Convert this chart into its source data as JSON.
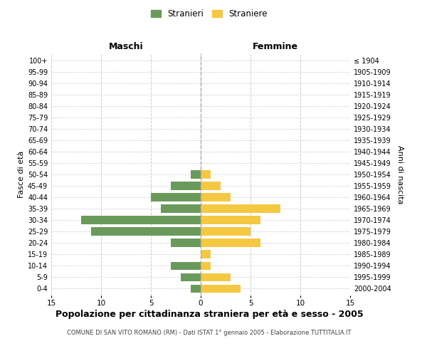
{
  "age_groups_bottom_to_top": [
    "0-4",
    "5-9",
    "10-14",
    "15-19",
    "20-24",
    "25-29",
    "30-34",
    "35-39",
    "40-44",
    "45-49",
    "50-54",
    "55-59",
    "60-64",
    "65-69",
    "70-74",
    "75-79",
    "80-84",
    "85-89",
    "90-94",
    "95-99",
    "100+"
  ],
  "birth_years_bottom_to_top": [
    "2000-2004",
    "1995-1999",
    "1990-1994",
    "1985-1989",
    "1980-1984",
    "1975-1979",
    "1970-1974",
    "1965-1969",
    "1960-1964",
    "1955-1959",
    "1950-1954",
    "1945-1949",
    "1940-1944",
    "1935-1939",
    "1930-1934",
    "1925-1929",
    "1920-1924",
    "1915-1919",
    "1910-1914",
    "1905-1909",
    "≤ 1904"
  ],
  "maschi": [
    1,
    2,
    3,
    0,
    3,
    11,
    12,
    4,
    5,
    3,
    1,
    0,
    0,
    0,
    0,
    0,
    0,
    0,
    0,
    0,
    0
  ],
  "femmine": [
    4,
    3,
    1,
    1,
    6,
    5,
    6,
    8,
    3,
    2,
    1,
    0,
    0,
    0,
    0,
    0,
    0,
    0,
    0,
    0,
    0
  ],
  "maschi_color": "#6a9a5b",
  "femmine_color": "#f5c842",
  "xlabel_left": "Maschi",
  "xlabel_right": "Femmine",
  "ylabel_left": "Fasce di età",
  "ylabel_right": "Anni di nascita",
  "legend_maschi": "Stranieri",
  "legend_femmine": "Straniere",
  "title": "Popolazione per cittadinanza straniera per età e sesso - 2005",
  "subtitle": "COMUNE DI SAN VITO ROMANO (RM) - Dati ISTAT 1° gennaio 2005 - Elaborazione TUTTITALIA.IT",
  "xlim": 15,
  "background_color": "#ffffff",
  "grid_color": "#cccccc"
}
